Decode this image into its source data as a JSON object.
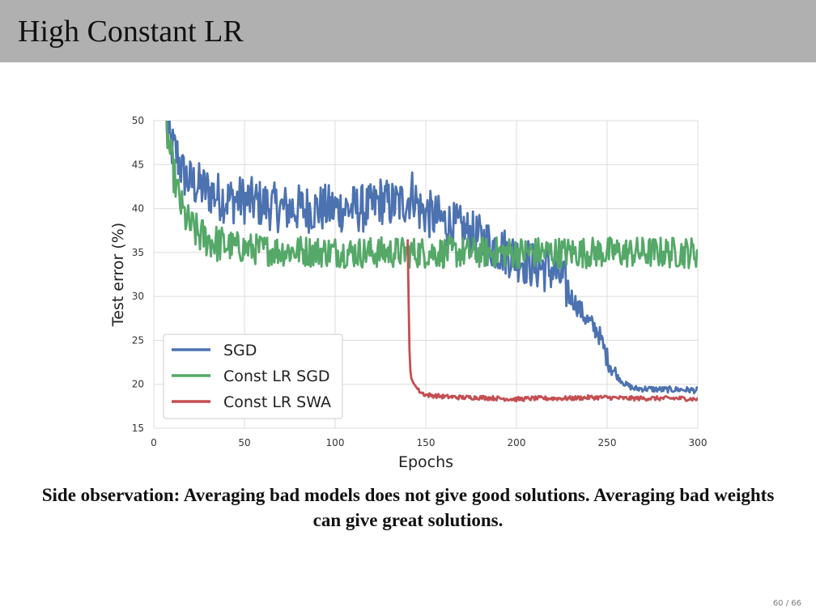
{
  "slide": {
    "title": "High Constant LR",
    "caption": "Side observation: Averaging bad models does not give good solutions. Averaging bad weights can give great solutions.",
    "page_number": "60 / 66"
  },
  "chart_data": {
    "type": "line",
    "title": "",
    "xlabel": "Epochs",
    "ylabel": "Test error (%)",
    "xlim": [
      0,
      300
    ],
    "ylim": [
      15,
      50
    ],
    "xticks": [
      0,
      50,
      100,
      150,
      200,
      250,
      300
    ],
    "yticks": [
      15,
      20,
      25,
      30,
      35,
      40,
      45,
      50
    ],
    "grid": true,
    "legend_position": "lower-left",
    "series": [
      {
        "name": "SGD",
        "color": "#4c72b0",
        "x": [
          7,
          10,
          13,
          16,
          20,
          25,
          30,
          35,
          40,
          45,
          50,
          60,
          70,
          80,
          90,
          100,
          110,
          120,
          125,
          130,
          135,
          140,
          143,
          146,
          150,
          160,
          170,
          180,
          190,
          200,
          210,
          220,
          225,
          230,
          235,
          240,
          245,
          250,
          255,
          260,
          265,
          270,
          280,
          290,
          300
        ],
        "y": [
          49,
          47,
          46,
          44,
          43,
          42.5,
          42,
          41.5,
          41,
          41,
          41,
          40.5,
          40,
          40,
          40,
          40,
          40,
          40,
          41,
          40.5,
          40.5,
          41,
          42,
          40,
          39.5,
          38.5,
          37.5,
          36.5,
          35.5,
          34.5,
          33.5,
          33,
          32,
          30,
          28.5,
          27,
          26,
          23,
          21,
          20,
          19.5,
          19.5,
          19.4,
          19.4,
          19.3
        ]
      },
      {
        "name": "Const LR SGD",
        "color": "#55a868",
        "x": [
          7,
          10,
          13,
          16,
          20,
          25,
          30,
          35,
          40,
          50,
          60,
          70,
          80,
          90,
          100,
          110,
          120,
          130,
          140,
          150,
          160,
          170,
          180,
          190,
          200,
          210,
          220,
          230,
          240,
          250,
          260,
          270,
          280,
          290,
          300
        ],
        "y": [
          49,
          45,
          42,
          39.5,
          38,
          37,
          36.5,
          36,
          35.8,
          35.5,
          35.3,
          35.2,
          35.2,
          35.1,
          35.1,
          35,
          35,
          35,
          35,
          35,
          35,
          35,
          35,
          35,
          35,
          35,
          35,
          35,
          35,
          35,
          35,
          35,
          35,
          35,
          35
        ]
      },
      {
        "name": "Const LR SWA",
        "color": "#c44e52",
        "x": [
          140,
          140.5,
          141,
          141.5,
          142,
          143,
          144,
          145,
          146,
          148,
          150,
          155,
          160,
          170,
          180,
          190,
          200,
          210,
          220,
          230,
          240,
          250,
          260,
          270,
          280,
          290,
          300
        ],
        "y": [
          36.5,
          30,
          24,
          21.5,
          20.7,
          20.2,
          19.9,
          19.6,
          19.3,
          19,
          18.8,
          18.7,
          18.6,
          18.5,
          18.5,
          18.4,
          18.3,
          18.4,
          18.4,
          18.4,
          18.5,
          18.5,
          18.4,
          18.4,
          18.4,
          18.4,
          18.3
        ]
      }
    ]
  }
}
